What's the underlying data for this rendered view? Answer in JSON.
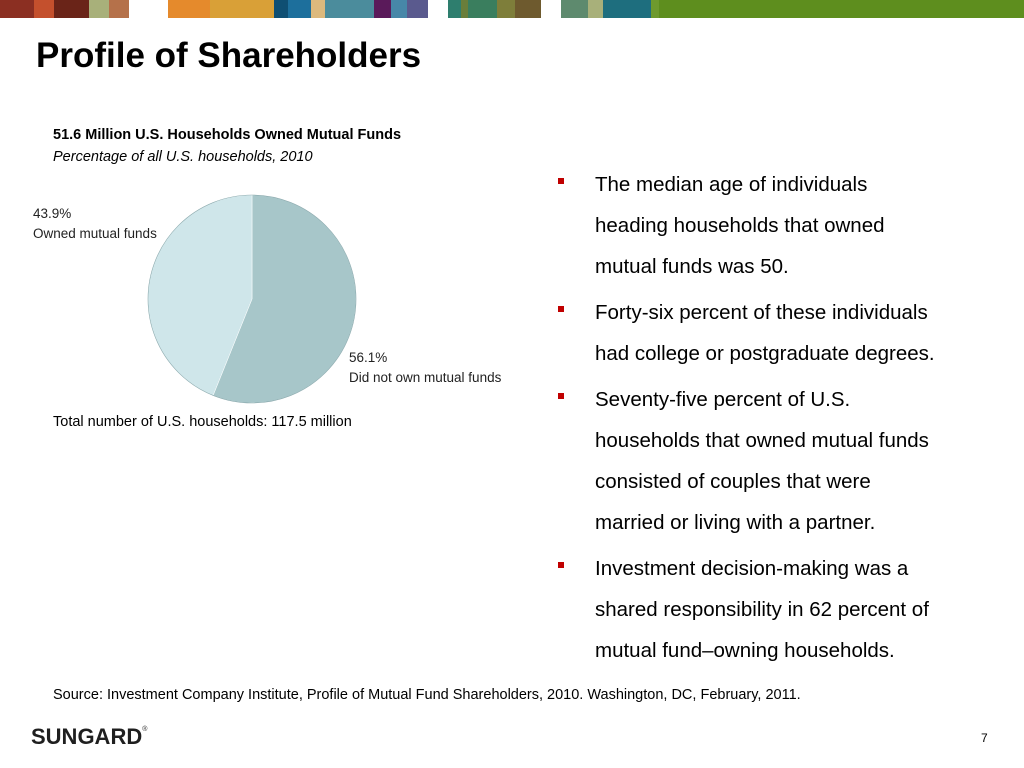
{
  "header": {
    "color_bar": [
      "#8b2f22",
      "#c4502d",
      "#6a2418",
      "#a8b07a",
      "#b5714a",
      "#ffffff",
      "#e58a2c",
      "#d9a037",
      "#0f4f73",
      "#1d6f9c",
      "#dcb97d",
      "#4b8c9c",
      "#5a1a5a",
      "#4787a8",
      "#5a5a8e",
      "#ffffff",
      "#2e7e6e",
      "#6a7e3a",
      "#3a7e5e",
      "#7e7e3a",
      "#6e5a2e",
      "#ffffff",
      "#5e8a6e",
      "#a8b07a",
      "#1e6e7e",
      "#6e9a2e",
      "#5e8e1e"
    ]
  },
  "slide": {
    "title": "Profile of Shareholders",
    "page_number": "7"
  },
  "chart_data": {
    "type": "pie",
    "title": "51.6 Million U.S. Households Owned Mutual Funds",
    "subtitle": "Percentage of all U.S. households, 2010",
    "slices": [
      {
        "value": 56.1,
        "label_value": "56.1%",
        "label": "Did not own mutual funds",
        "color": "#a7c6c9"
      },
      {
        "value": 43.9,
        "label_value": "43.9%",
        "label": "Owned mutual funds",
        "color": "#cfe6ea"
      }
    ],
    "footnote": "Total number of U.S. households: 117.5 million"
  },
  "bullets": [
    {
      "lines": [
        "The median age of individuals",
        "heading households that owned",
        "mutual funds was 50."
      ]
    },
    {
      "lines": [
        "Forty-six percent of these individuals",
        "had college or postgraduate degrees."
      ]
    },
    {
      "lines": [
        "Seventy-five percent of U.S.",
        "households that owned mutual funds",
        "consisted of couples that were",
        "married or living with a partner."
      ]
    },
    {
      "lines": [
        "Investment decision-making was a",
        "shared responsibility in 62 percent of",
        "mutual fund–owning households."
      ]
    }
  ],
  "source": "Source:  Investment Company Institute, Profile of Mutual Fund Shareholders, 2010.  Washington, DC, February, 2011.",
  "logo": {
    "text": "SUNGARD",
    "mark": "®"
  }
}
